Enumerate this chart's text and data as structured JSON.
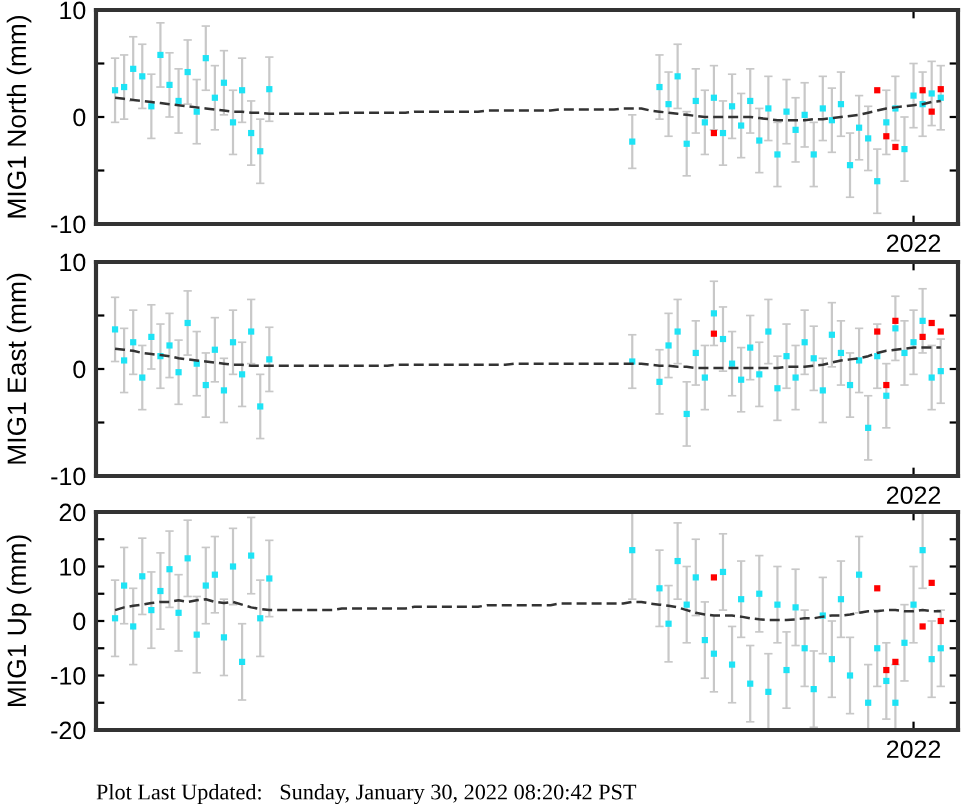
{
  "chart_data": [
    {
      "type": "scatter",
      "ylabel": "MIG1 North (mm)",
      "ylim": [
        -10,
        10
      ],
      "yticks": [
        -10,
        {
          "value": -5,
          "label": null
        },
        0,
        {
          "value": 5,
          "label": null
        },
        10
      ],
      "grid": false,
      "legend": false,
      "marker": "square",
      "categories": [
        null,
        null,
        null,
        null,
        null,
        null,
        null,
        null,
        null,
        null,
        null,
        null,
        null,
        null,
        null,
        null,
        null,
        null,
        null,
        null,
        null,
        null,
        null,
        null,
        null,
        null,
        null,
        null,
        null,
        null,
        null,
        null,
        null,
        null,
        null,
        null,
        null,
        null,
        null,
        null,
        null,
        null,
        null,
        null,
        null,
        null,
        null,
        null,
        null,
        null,
        null,
        null,
        null,
        null,
        null,
        null,
        null,
        null,
        null,
        null,
        null,
        null,
        null,
        null,
        null,
        null,
        null,
        null,
        null,
        null,
        null,
        null,
        null,
        null,
        null,
        null,
        null,
        null,
        null,
        null,
        null,
        null,
        null,
        null,
        null,
        null,
        null,
        null,
        "2022",
        null,
        null,
        null
      ],
      "series": [
        {
          "color": "#1ee3f5",
          "values": [
            2.5,
            2.8,
            4.5,
            3.8,
            1.0,
            5.8,
            3.0,
            1.5,
            4.2,
            0.5,
            5.5,
            1.8,
            3.2,
            -0.5,
            2.5,
            -1.5,
            -3.2,
            2.6,
            null,
            null,
            null,
            null,
            null,
            null,
            null,
            null,
            null,
            null,
            null,
            null,
            null,
            null,
            null,
            null,
            null,
            null,
            null,
            null,
            null,
            null,
            null,
            null,
            null,
            null,
            null,
            null,
            null,
            null,
            null,
            null,
            null,
            null,
            null,
            null,
            null,
            null,
            null,
            -2.3,
            null,
            null,
            2.8,
            1.2,
            3.8,
            -2.5,
            1.5,
            -0.5,
            1.8,
            -1.5,
            1.0,
            -0.8,
            1.5,
            -2.2,
            0.8,
            -3.5,
            0.5,
            -1.2,
            0.2,
            -3.5,
            0.8,
            -0.3,
            1.2,
            -4.5,
            -1.0,
            -2.0,
            -6.0,
            -0.5,
            0.8,
            -3.0,
            2.0,
            1.2,
            2.2,
            1.8
          ],
          "errors": [
            3,
            3,
            3,
            3,
            3,
            3,
            3,
            3,
            3,
            3,
            3,
            3,
            3,
            3,
            3,
            3,
            3,
            3,
            null,
            null,
            null,
            null,
            null,
            null,
            null,
            null,
            null,
            null,
            null,
            null,
            null,
            null,
            null,
            null,
            null,
            null,
            null,
            null,
            null,
            null,
            null,
            null,
            null,
            null,
            null,
            null,
            null,
            null,
            null,
            null,
            null,
            null,
            null,
            null,
            null,
            null,
            null,
            2.5,
            null,
            null,
            3,
            3,
            3,
            3,
            3,
            3,
            3,
            3,
            3,
            3,
            3,
            3,
            3,
            3,
            3,
            3,
            3,
            3,
            3,
            3,
            3,
            3,
            3,
            3,
            3,
            3,
            3,
            3,
            3,
            3,
            3,
            3
          ]
        },
        {
          "color": "#ff0000",
          "values": [
            null,
            null,
            null,
            null,
            null,
            null,
            null,
            null,
            null,
            null,
            null,
            null,
            null,
            null,
            null,
            null,
            null,
            null,
            null,
            null,
            null,
            null,
            null,
            null,
            null,
            null,
            null,
            null,
            null,
            null,
            null,
            null,
            null,
            null,
            null,
            null,
            null,
            null,
            null,
            null,
            null,
            null,
            null,
            null,
            null,
            null,
            null,
            null,
            null,
            null,
            null,
            null,
            null,
            null,
            null,
            null,
            null,
            null,
            null,
            null,
            null,
            null,
            null,
            null,
            null,
            null,
            -1.5,
            null,
            null,
            null,
            null,
            null,
            null,
            null,
            null,
            null,
            null,
            null,
            null,
            null,
            null,
            null,
            null,
            null,
            2.5,
            -1.8,
            -2.8,
            null,
            null,
            2.5,
            0.5,
            2.6
          ]
        },
        {
          "type": "line",
          "color": "#333333",
          "line_style": "dashed",
          "marker": "none",
          "values": [
            1.8,
            1.7,
            1.6,
            1.5,
            1.4,
            1.3,
            1.2,
            1.1,
            1.0,
            0.9,
            0.8,
            0.7,
            0.6,
            0.5,
            0.5,
            0.4,
            0.4,
            0.3,
            0.3,
            0.3,
            0.3,
            0.3,
            0.3,
            0.3,
            0.3,
            0.4,
            0.4,
            0.4,
            0.4,
            0.4,
            0.4,
            0.4,
            0.4,
            0.5,
            0.5,
            0.5,
            0.5,
            0.5,
            0.5,
            0.5,
            0.5,
            0.6,
            0.6,
            0.6,
            0.6,
            0.6,
            0.6,
            0.6,
            0.6,
            0.7,
            0.7,
            0.7,
            0.7,
            0.7,
            0.7,
            0.7,
            0.8,
            0.8,
            0.8,
            0.6,
            0.5,
            0.4,
            0.3,
            0.2,
            0.1,
            0.0,
            0.0,
            0.0,
            0.0,
            0.0,
            0.0,
            -0.1,
            -0.2,
            -0.3,
            -0.3,
            -0.3,
            -0.3,
            -0.2,
            -0.2,
            -0.1,
            0.0,
            0.1,
            0.2,
            0.4,
            0.6,
            0.8,
            0.9,
            1.0,
            1.1,
            1.2,
            1.4,
            1.5
          ]
        }
      ]
    },
    {
      "type": "scatter",
      "ylabel": "MIG1 East (mm)",
      "ylim": [
        -10,
        10
      ],
      "yticks": [
        -10,
        {
          "value": -5,
          "label": null
        },
        0,
        {
          "value": 5,
          "label": null
        },
        10
      ],
      "grid": false,
      "legend": false,
      "marker": "square",
      "categories": [
        null,
        null,
        null,
        null,
        null,
        null,
        null,
        null,
        null,
        null,
        null,
        null,
        null,
        null,
        null,
        null,
        null,
        null,
        null,
        null,
        null,
        null,
        null,
        null,
        null,
        null,
        null,
        null,
        null,
        null,
        null,
        null,
        null,
        null,
        null,
        null,
        null,
        null,
        null,
        null,
        null,
        null,
        null,
        null,
        null,
        null,
        null,
        null,
        null,
        null,
        null,
        null,
        null,
        null,
        null,
        null,
        null,
        null,
        null,
        null,
        null,
        null,
        null,
        null,
        null,
        null,
        null,
        null,
        null,
        null,
        null,
        null,
        null,
        null,
        null,
        null,
        null,
        null,
        null,
        null,
        null,
        null,
        null,
        null,
        null,
        null,
        null,
        null,
        "2022",
        null,
        null,
        null
      ],
      "series": [
        {
          "color": "#1ee3f5",
          "values": [
            3.7,
            0.8,
            2.5,
            -0.8,
            3.0,
            1.2,
            2.2,
            -0.3,
            4.3,
            0.5,
            -1.5,
            1.8,
            -2.0,
            2.5,
            -0.5,
            3.5,
            -3.5,
            0.9,
            null,
            null,
            null,
            null,
            null,
            null,
            null,
            null,
            null,
            null,
            null,
            null,
            null,
            null,
            null,
            null,
            null,
            null,
            null,
            null,
            null,
            null,
            null,
            null,
            null,
            null,
            null,
            null,
            null,
            null,
            null,
            null,
            null,
            null,
            null,
            null,
            null,
            null,
            null,
            0.7,
            null,
            null,
            -1.2,
            2.2,
            3.5,
            -4.2,
            1.5,
            -0.8,
            5.2,
            2.8,
            0.5,
            -1.0,
            2.0,
            -0.5,
            3.5,
            -1.8,
            1.2,
            -0.8,
            2.5,
            1.0,
            -2.0,
            3.2,
            1.5,
            -1.5,
            0.8,
            -5.5,
            1.2,
            -2.5,
            3.8,
            1.5,
            2.5,
            4.5,
            -0.8,
            -0.2
          ],
          "errors": [
            3,
            3,
            3,
            3,
            3,
            3,
            3,
            3,
            3,
            3,
            3,
            3,
            3,
            3,
            3,
            3,
            3,
            3,
            null,
            null,
            null,
            null,
            null,
            null,
            null,
            null,
            null,
            null,
            null,
            null,
            null,
            null,
            null,
            null,
            null,
            null,
            null,
            null,
            null,
            null,
            null,
            null,
            null,
            null,
            null,
            null,
            null,
            null,
            null,
            null,
            null,
            null,
            null,
            null,
            null,
            null,
            null,
            2.5,
            null,
            null,
            3,
            3,
            3,
            3,
            3,
            3,
            3,
            3,
            3,
            3,
            3,
            3,
            3,
            3,
            3,
            3,
            3,
            3,
            3,
            3,
            3,
            3,
            3,
            3,
            3,
            3,
            3,
            3,
            3,
            3,
            3,
            3
          ]
        },
        {
          "color": "#ff0000",
          "values": [
            null,
            null,
            null,
            null,
            null,
            null,
            null,
            null,
            null,
            null,
            null,
            null,
            null,
            null,
            null,
            null,
            null,
            null,
            null,
            null,
            null,
            null,
            null,
            null,
            null,
            null,
            null,
            null,
            null,
            null,
            null,
            null,
            null,
            null,
            null,
            null,
            null,
            null,
            null,
            null,
            null,
            null,
            null,
            null,
            null,
            null,
            null,
            null,
            null,
            null,
            null,
            null,
            null,
            null,
            null,
            null,
            null,
            null,
            null,
            null,
            null,
            null,
            null,
            null,
            null,
            null,
            3.3,
            null,
            null,
            null,
            null,
            null,
            null,
            null,
            null,
            null,
            null,
            null,
            null,
            null,
            null,
            null,
            null,
            null,
            3.5,
            -1.5,
            4.5,
            null,
            null,
            3.0,
            4.3,
            3.5
          ]
        },
        {
          "type": "line",
          "color": "#333333",
          "line_style": "dashed",
          "marker": "none",
          "values": [
            1.9,
            1.8,
            1.7,
            1.5,
            1.4,
            1.3,
            1.2,
            1.0,
            0.9,
            0.8,
            0.7,
            0.6,
            0.5,
            0.4,
            0.4,
            0.3,
            0.3,
            0.3,
            0.3,
            0.3,
            0.3,
            0.3,
            0.3,
            0.3,
            0.3,
            0.3,
            0.3,
            0.3,
            0.3,
            0.3,
            0.3,
            0.4,
            0.4,
            0.4,
            0.4,
            0.4,
            0.4,
            0.4,
            0.4,
            0.4,
            0.4,
            0.4,
            0.4,
            0.4,
            0.5,
            0.5,
            0.5,
            0.5,
            0.5,
            0.5,
            0.5,
            0.5,
            0.5,
            0.5,
            0.5,
            0.5,
            0.5,
            0.5,
            0.5,
            0.4,
            0.3,
            0.3,
            0.2,
            0.2,
            0.1,
            0.1,
            0.1,
            0.1,
            0.1,
            0.1,
            0.1,
            0.1,
            0.1,
            0.1,
            0.2,
            0.2,
            0.2,
            0.3,
            0.4,
            0.6,
            0.8,
            0.9,
            1.0,
            1.2,
            1.5,
            1.7,
            1.8,
            1.9,
            2.0,
            2.0,
            2.0,
            2.0
          ]
        }
      ]
    },
    {
      "type": "scatter",
      "ylabel": "MIG1 Up (mm)",
      "ylim": [
        -20,
        20
      ],
      "yticks": [
        -20,
        {
          "value": -15,
          "label": null
        },
        -10,
        {
          "value": -5,
          "label": null
        },
        0,
        {
          "value": 5,
          "label": null
        },
        10,
        {
          "value": 15,
          "label": null
        },
        20
      ],
      "grid": false,
      "legend": false,
      "marker": "square",
      "annotations": [
        "Plot Last Updated:   Sunday, January 30, 2022 08:20:42 PST"
      ],
      "categories": [
        null,
        null,
        null,
        null,
        null,
        null,
        null,
        null,
        null,
        null,
        null,
        null,
        null,
        null,
        null,
        null,
        null,
        null,
        null,
        null,
        null,
        null,
        null,
        null,
        null,
        null,
        null,
        null,
        null,
        null,
        null,
        null,
        null,
        null,
        null,
        null,
        null,
        null,
        null,
        null,
        null,
        null,
        null,
        null,
        null,
        null,
        null,
        null,
        null,
        null,
        null,
        null,
        null,
        null,
        null,
        null,
        null,
        null,
        null,
        null,
        null,
        null,
        null,
        null,
        null,
        null,
        null,
        null,
        null,
        null,
        null,
        null,
        null,
        null,
        null,
        null,
        null,
        null,
        null,
        null,
        null,
        null,
        null,
        null,
        null,
        null,
        null,
        null,
        "2022",
        null,
        null,
        null
      ],
      "series": [
        {
          "color": "#1ee3f5",
          "values": [
            0.5,
            6.5,
            -1,
            8.2,
            2,
            5.5,
            9.5,
            1.5,
            11.5,
            -2.5,
            6.5,
            8.5,
            -3,
            10,
            -7.5,
            12,
            0.5,
            7.8,
            null,
            null,
            null,
            null,
            null,
            null,
            null,
            null,
            null,
            null,
            null,
            null,
            null,
            null,
            null,
            null,
            null,
            null,
            null,
            null,
            null,
            null,
            null,
            null,
            null,
            null,
            null,
            null,
            null,
            null,
            null,
            null,
            null,
            null,
            null,
            null,
            null,
            null,
            null,
            13,
            null,
            null,
            6,
            -0.5,
            11,
            3,
            8,
            -3.5,
            -6,
            9,
            -8,
            4,
            -11.5,
            5,
            -13,
            3,
            -9,
            2.5,
            -5,
            -12.5,
            1,
            -7,
            4,
            -10,
            8.5,
            -15,
            -5,
            -11,
            -15,
            -4,
            3,
            13,
            -7,
            -5
          ],
          "errors": [
            7,
            7,
            7,
            7,
            7,
            7,
            7,
            7,
            7,
            7,
            7,
            7,
            7,
            7,
            7,
            7,
            7,
            7,
            null,
            null,
            null,
            null,
            null,
            null,
            null,
            null,
            null,
            null,
            null,
            null,
            null,
            null,
            null,
            null,
            null,
            null,
            null,
            null,
            null,
            null,
            null,
            null,
            null,
            null,
            null,
            null,
            null,
            null,
            null,
            null,
            null,
            null,
            null,
            null,
            null,
            null,
            null,
            9,
            null,
            null,
            7,
            7,
            7,
            7,
            7,
            7,
            7,
            7,
            7,
            7,
            7,
            7,
            7,
            7,
            7,
            7,
            7,
            7,
            7,
            7,
            7,
            7,
            7,
            7,
            7,
            7,
            7,
            7,
            7,
            7,
            7,
            7
          ]
        },
        {
          "color": "#ff0000",
          "values": [
            null,
            null,
            null,
            null,
            null,
            null,
            null,
            null,
            null,
            null,
            null,
            null,
            null,
            null,
            null,
            null,
            null,
            null,
            null,
            null,
            null,
            null,
            null,
            null,
            null,
            null,
            null,
            null,
            null,
            null,
            null,
            null,
            null,
            null,
            null,
            null,
            null,
            null,
            null,
            null,
            null,
            null,
            null,
            null,
            null,
            null,
            null,
            null,
            null,
            null,
            null,
            null,
            null,
            null,
            null,
            null,
            null,
            null,
            null,
            null,
            null,
            null,
            null,
            null,
            null,
            null,
            8,
            null,
            null,
            null,
            null,
            null,
            null,
            null,
            null,
            null,
            null,
            null,
            null,
            null,
            null,
            null,
            null,
            null,
            6,
            -9,
            -7.5,
            null,
            null,
            -1,
            7,
            0
          ]
        },
        {
          "type": "line",
          "color": "#333333",
          "line_style": "dashed",
          "marker": "none",
          "values": [
            2.0,
            2.5,
            2.8,
            3.0,
            3.3,
            3.5,
            3.5,
            3.8,
            3.5,
            3.8,
            4.0,
            3.5,
            3.3,
            3.5,
            3.0,
            2.5,
            2.2,
            2.0,
            2.0,
            2.0,
            2.0,
            2.0,
            2.0,
            2.0,
            2.0,
            2.3,
            2.3,
            2.3,
            2.3,
            2.3,
            2.3,
            2.3,
            2.3,
            2.6,
            2.6,
            2.6,
            2.6,
            2.6,
            2.6,
            2.6,
            2.6,
            2.9,
            2.9,
            2.9,
            2.9,
            2.9,
            2.9,
            2.9,
            2.9,
            3.2,
            3.2,
            3.2,
            3.2,
            3.2,
            3.2,
            3.2,
            3.2,
            3.5,
            3.5,
            3.2,
            3.0,
            2.8,
            2.5,
            2.0,
            1.5,
            1.2,
            1.0,
            1.0,
            1.0,
            0.8,
            0.5,
            0.3,
            0.2,
            0.2,
            0.2,
            0.3,
            0.5,
            0.5,
            0.8,
            1.0,
            1.0,
            1.2,
            1.5,
            1.8,
            1.8,
            2.0,
            2.0,
            1.8,
            1.8,
            2.0,
            1.8,
            1.8
          ]
        }
      ]
    }
  ]
}
